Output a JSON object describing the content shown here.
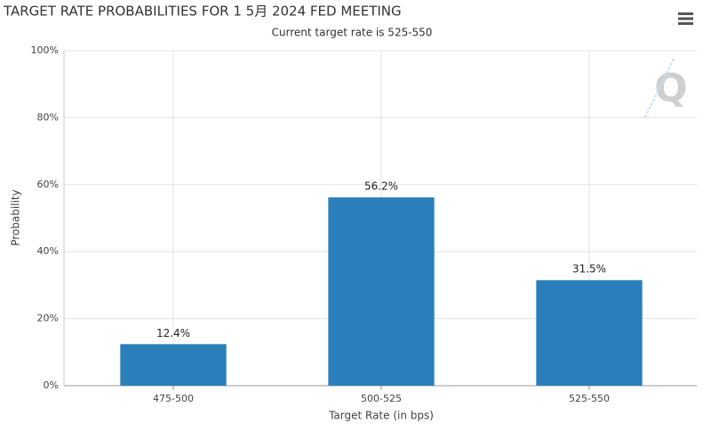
{
  "chart_data": {
    "type": "bar",
    "title": "TARGET RATE PROBABILITIES FOR 1 5月 2024 FED MEETING",
    "subtitle": "Current target rate is 525-550",
    "x_label": "Target Rate (in bps)",
    "y_label": "Probability",
    "categories": [
      "475-500",
      "500-525",
      "525-550"
    ],
    "values": [
      12.4,
      56.2,
      31.5
    ],
    "value_labels": [
      "12.4%",
      "56.2%",
      "31.5%"
    ],
    "color": "#2a7fba",
    "ylim": [
      0,
      100
    ],
    "yticks": [
      {
        "value": 0,
        "label": "0%"
      },
      {
        "value": 20,
        "label": "20%"
      },
      {
        "value": 40,
        "label": "40%"
      },
      {
        "value": 60,
        "label": "60%"
      },
      {
        "value": 80,
        "label": "80%"
      },
      {
        "value": 100,
        "label": "100%"
      }
    ],
    "grid": true
  }
}
